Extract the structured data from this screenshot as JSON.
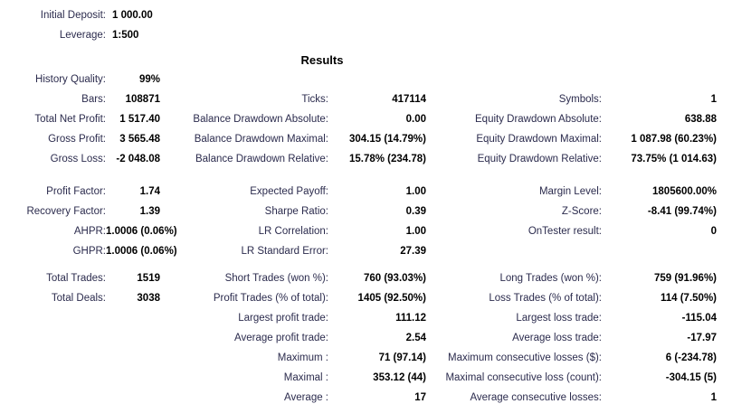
{
  "title": "Results",
  "colors": {
    "background": "#ffffff",
    "label_text": "#2b2b4d",
    "value_text": "#000000"
  },
  "account": {
    "initial_deposit": {
      "l": "Initial Deposit:",
      "v": "1 000.00"
    },
    "leverage": {
      "l": "Leverage:",
      "v": "1:500"
    }
  },
  "results": {
    "sections": [
      {
        "rows": [
          {
            "c1": {
              "l": "History Quality:",
              "v": "99%"
            },
            "c2": null,
            "c3": null
          },
          {
            "c1": {
              "l": "Bars:",
              "v": "108871"
            },
            "c2": {
              "l": "Ticks:",
              "v": "417114"
            },
            "c3": {
              "l": "Symbols:",
              "v": "1"
            }
          },
          {
            "c1": {
              "l": "Total Net Profit:",
              "v": "1 517.40"
            },
            "c2": {
              "l": "Balance Drawdown Absolute:",
              "v": "0.00"
            },
            "c3": {
              "l": "Equity Drawdown Absolute:",
              "v": "638.88"
            }
          },
          {
            "c1": {
              "l": "Gross Profit:",
              "v": "3 565.48"
            },
            "c2": {
              "l": "Balance Drawdown Maximal:",
              "v": "304.15 (14.79%)"
            },
            "c3": {
              "l": "Equity Drawdown Maximal:",
              "v": "1 087.98 (60.23%)"
            }
          },
          {
            "c1": {
              "l": "Gross Loss:",
              "v": "-2 048.08"
            },
            "c2": {
              "l": "Balance Drawdown Relative:",
              "v": "15.78% (234.78)"
            },
            "c3": {
              "l": "Equity Drawdown Relative:",
              "v": "73.75% (1 014.63)"
            }
          }
        ]
      },
      {
        "rows": [
          {
            "c1": {
              "l": "Profit Factor:",
              "v": "1.74"
            },
            "c2": {
              "l": "Expected Payoff:",
              "v": "1.00"
            },
            "c3": {
              "l": "Margin Level:",
              "v": "1805600.00%"
            }
          },
          {
            "c1": {
              "l": "Recovery Factor:",
              "v": "1.39"
            },
            "c2": {
              "l": "Sharpe Ratio:",
              "v": "0.39"
            },
            "c3": {
              "l": "Z-Score:",
              "v": "-8.41 (99.74%)"
            }
          },
          {
            "c1": {
              "l": "AHPR:",
              "v": "1.0006 (0.06%)"
            },
            "c2": {
              "l": "LR Correlation:",
              "v": "1.00"
            },
            "c3": {
              "l": "OnTester result:",
              "v": "0"
            }
          },
          {
            "c1": {
              "l": "GHPR:",
              "v": "1.0006 (0.06%)"
            },
            "c2": {
              "l": "LR Standard Error:",
              "v": "27.39"
            },
            "c3": null
          }
        ]
      },
      {
        "rows": [
          {
            "c1": {
              "l": "Total Trades:",
              "v": "1519"
            },
            "c2": {
              "l": "Short Trades (won %):",
              "v": "760 (93.03%)"
            },
            "c3": {
              "l": "Long Trades (won %):",
              "v": "759 (91.96%)"
            }
          },
          {
            "c1": {
              "l": "Total Deals:",
              "v": "3038"
            },
            "c2": {
              "l": "Profit Trades (% of total):",
              "v": "1405 (92.50%)"
            },
            "c3": {
              "l": "Loss Trades (% of total):",
              "v": "114 (7.50%)"
            }
          },
          {
            "c1": null,
            "c2": {
              "l": "Largest profit trade:",
              "v": "111.12"
            },
            "c3": {
              "l": "Largest loss trade:",
              "v": "-115.04"
            }
          },
          {
            "c1": null,
            "c2": {
              "l": "Average profit trade:",
              "v": "2.54"
            },
            "c3": {
              "l": "Average loss trade:",
              "v": "-17.97"
            }
          },
          {
            "c1": null,
            "c2": {
              "l": "Maximum :",
              "v": "71 (97.14)"
            },
            "c3": {
              "l": "Maximum consecutive losses ($):",
              "v": "6 (-234.78)"
            }
          },
          {
            "c1": null,
            "c2": {
              "l": "Maximal :",
              "v": "353.12 (44)"
            },
            "c3": {
              "l": "Maximal consecutive loss (count):",
              "v": "-304.15 (5)"
            }
          },
          {
            "c1": null,
            "c2": {
              "l": "Average :",
              "v": "17"
            },
            "c3": {
              "l": "Average consecutive losses:",
              "v": "1"
            }
          }
        ]
      }
    ]
  }
}
